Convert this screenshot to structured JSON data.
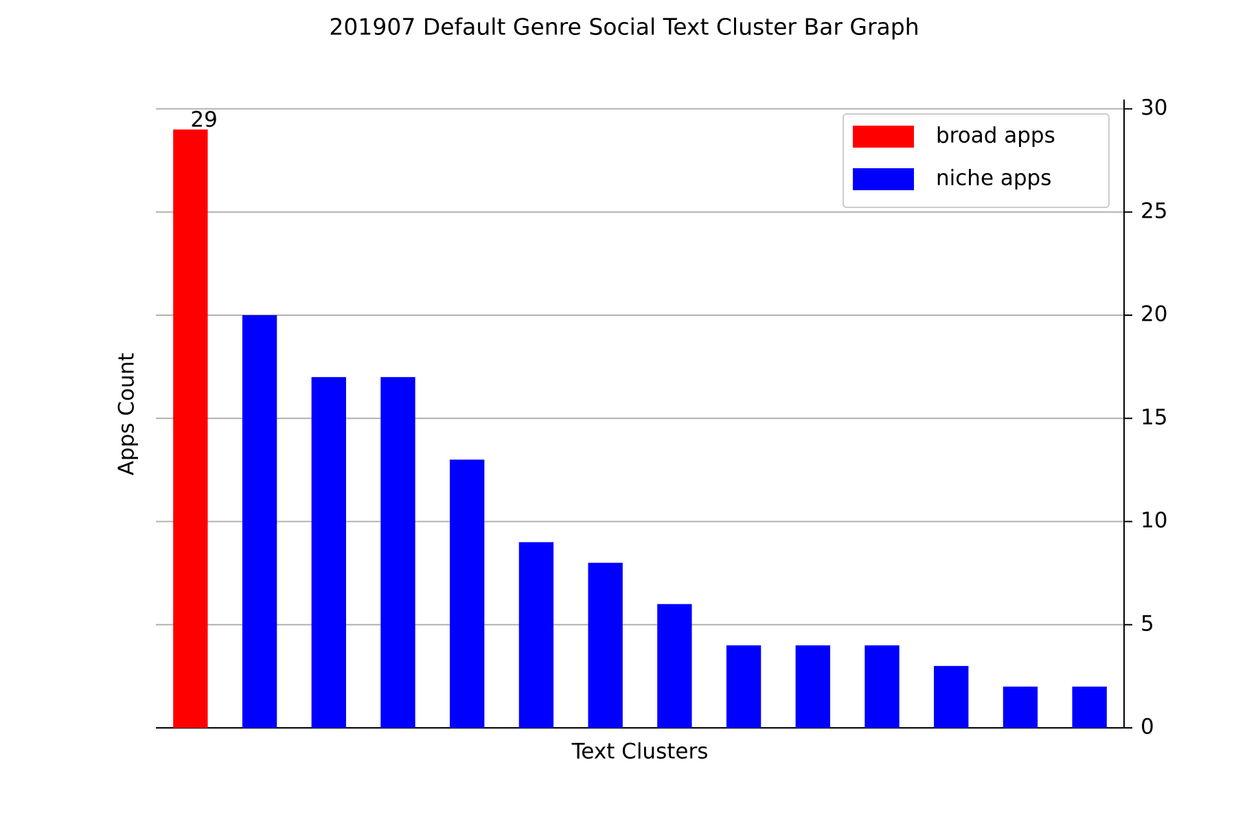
{
  "chart_data": {
    "type": "bar",
    "title": "201907 Default Genre Social Text Cluster Bar Graph",
    "xlabel": "Text Clusters",
    "ylabel": "Apps Count",
    "categories": [
      null,
      null,
      null,
      null,
      null,
      null,
      null,
      null,
      null,
      null,
      null,
      null,
      null,
      null
    ],
    "series": [
      {
        "name": "broad apps",
        "color": "#ff0000",
        "values": [
          29,
          null,
          null,
          null,
          null,
          null,
          null,
          null,
          null,
          null,
          null,
          null,
          null,
          null
        ]
      },
      {
        "name": "niche apps",
        "color": "#0000ff",
        "values": [
          null,
          20,
          17,
          17,
          13,
          9,
          8,
          6,
          4,
          4,
          4,
          3,
          2,
          2
        ]
      }
    ],
    "data_labels": [
      0
    ],
    "ylim": [
      0,
      30.45
    ],
    "yticks": [
      0,
      5,
      10,
      15,
      20,
      25,
      30
    ],
    "yaxis_position": "right",
    "grid": true,
    "legend": "upper right"
  }
}
